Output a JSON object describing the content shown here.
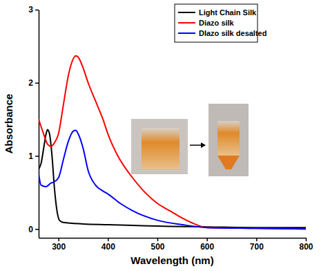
{
  "chart_data": {
    "type": "line",
    "x_label": "Wavelength (nm)",
    "y_label": "Absorbance",
    "xlim": [
      260,
      800
    ],
    "ylim": [
      -0.12,
      3
    ],
    "xticks": [
      300,
      400,
      500,
      600,
      700,
      800
    ],
    "yticks": [
      0,
      1,
      2,
      3
    ],
    "grid": false,
    "legend": "upper right",
    "series": [
      {
        "name": "Light Chain Silk",
        "color": "#000000",
        "x": [
          260,
          265,
          270,
          275,
          278,
          282,
          287,
          292,
          297,
          302,
          310,
          350,
          400,
          450,
          500,
          600,
          700,
          800
        ],
        "values": [
          0.82,
          0.9,
          1.1,
          1.3,
          1.36,
          1.3,
          1.0,
          0.55,
          0.25,
          0.12,
          0.09,
          0.07,
          0.06,
          0.05,
          0.04,
          0.03,
          0.02,
          0.02
        ]
      },
      {
        "name": "Diazo silk",
        "color": "#ff0000",
        "x": [
          260,
          270,
          278,
          285,
          292,
          300,
          310,
          320,
          330,
          335,
          340,
          350,
          360,
          375,
          390,
          400,
          420,
          450,
          475,
          500,
          525,
          550,
          575,
          600,
          700,
          800
        ],
        "values": [
          1.5,
          1.3,
          1.16,
          1.13,
          1.18,
          1.3,
          1.7,
          2.1,
          2.33,
          2.37,
          2.35,
          2.2,
          2.0,
          1.75,
          1.5,
          1.3,
          1.0,
          0.7,
          0.5,
          0.35,
          0.25,
          0.15,
          0.07,
          0.02,
          0.01,
          0.0
        ]
      },
      {
        "name": "DIazo silk desalted",
        "color": "#0000ff",
        "x": [
          260,
          265,
          275,
          285,
          290,
          300,
          310,
          320,
          330,
          335,
          340,
          350,
          360,
          375,
          390,
          400,
          425,
          450,
          500,
          550,
          600,
          700,
          800
        ],
        "values": [
          0.75,
          0.6,
          0.58,
          0.63,
          0.64,
          0.7,
          0.95,
          1.2,
          1.34,
          1.35,
          1.3,
          1.1,
          0.8,
          0.6,
          0.52,
          0.48,
          0.35,
          0.25,
          0.12,
          0.06,
          0.02,
          0.01,
          0.0
        ]
      }
    ]
  }
}
